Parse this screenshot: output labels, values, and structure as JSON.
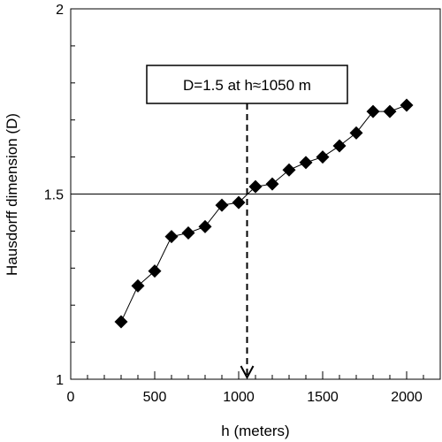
{
  "chart_data": {
    "type": "scatter",
    "xlabel": "h (meters)",
    "ylabel": "Hausdorff dimension (D)",
    "xlim": [
      0,
      2200
    ],
    "ylim": [
      1,
      2
    ],
    "x_ticks": [
      0,
      500,
      1000,
      1500,
      2000
    ],
    "x_tick_labels": [
      "0",
      "500",
      "1000",
      "1500",
      "2000"
    ],
    "y_ticks": [
      1,
      1.5,
      2
    ],
    "y_tick_labels": [
      "1",
      "1.5",
      "2"
    ],
    "x_minor_step": 100,
    "y_minor_step": 0.1,
    "grid": false,
    "marker": "diamond",
    "line_style": "solid",
    "colors": {
      "series": "#000000",
      "axes": "#000000"
    },
    "series": [
      {
        "x": [
          300,
          400,
          500,
          600,
          700,
          800,
          900,
          1000,
          1100,
          1200,
          1300,
          1400,
          1500,
          1600,
          1700,
          1800,
          1900,
          2000
        ],
        "y": [
          1.155,
          1.252,
          1.292,
          1.385,
          1.395,
          1.412,
          1.47,
          1.477,
          1.52,
          1.527,
          1.565,
          1.585,
          1.6,
          1.63,
          1.665,
          1.723,
          1.723,
          1.74
        ]
      }
    ],
    "reference_line": {
      "y": 1.5
    },
    "annotation": {
      "text": "D=1.5 at h≈1050 m",
      "x": 1050,
      "style": "dashed vertical line with downward arrow"
    }
  }
}
